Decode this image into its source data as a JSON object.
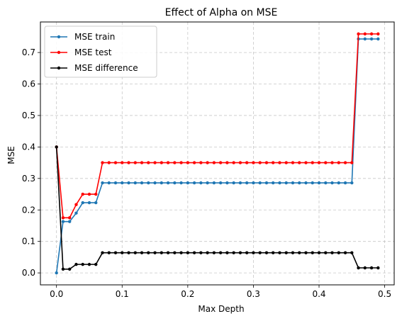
{
  "chart_data": {
    "type": "line",
    "title": "Effect of Alpha on MSE",
    "xlabel": "Max Depth",
    "ylabel": "MSE",
    "xlim": [
      -0.0245,
      0.5145
    ],
    "ylim": [
      -0.038,
      0.797
    ],
    "xticks": [
      0.0,
      0.1,
      0.2,
      0.3,
      0.4,
      0.5
    ],
    "xtick_labels": [
      "0.0",
      "0.1",
      "0.2",
      "0.3",
      "0.4",
      "0.5"
    ],
    "yticks": [
      0.0,
      0.1,
      0.2,
      0.3,
      0.4,
      0.5,
      0.6,
      0.7
    ],
    "ytick_labels": [
      "0.0",
      "0.1",
      "0.2",
      "0.3",
      "0.4",
      "0.5",
      "0.6",
      "0.7"
    ],
    "grid": true,
    "legend": "top-left",
    "x": [
      0.0,
      0.01,
      0.02,
      0.03,
      0.04,
      0.05,
      0.06,
      0.07,
      0.08,
      0.09,
      0.1,
      0.11,
      0.12,
      0.13,
      0.14,
      0.15,
      0.16,
      0.17,
      0.18,
      0.19,
      0.2,
      0.21,
      0.22,
      0.23,
      0.24,
      0.25,
      0.26,
      0.27,
      0.28,
      0.29,
      0.3,
      0.31,
      0.32,
      0.33,
      0.34,
      0.35,
      0.36,
      0.37,
      0.38,
      0.39,
      0.4,
      0.41,
      0.42,
      0.43,
      0.44,
      0.45,
      0.46,
      0.47,
      0.48,
      0.49
    ],
    "series": [
      {
        "name": "MSE train",
        "color": "#1f77b4",
        "values": [
          0.0,
          0.163,
          0.163,
          0.19,
          0.223,
          0.223,
          0.223,
          0.286,
          0.286,
          0.286,
          0.286,
          0.286,
          0.286,
          0.286,
          0.286,
          0.286,
          0.286,
          0.286,
          0.286,
          0.286,
          0.286,
          0.286,
          0.286,
          0.286,
          0.286,
          0.286,
          0.286,
          0.286,
          0.286,
          0.286,
          0.286,
          0.286,
          0.286,
          0.286,
          0.286,
          0.286,
          0.286,
          0.286,
          0.286,
          0.286,
          0.286,
          0.286,
          0.286,
          0.286,
          0.286,
          0.286,
          0.743,
          0.743,
          0.743,
          0.743
        ]
      },
      {
        "name": "MSE test",
        "color": "#ff0000",
        "values": [
          0.4,
          0.175,
          0.175,
          0.217,
          0.25,
          0.25,
          0.25,
          0.35,
          0.35,
          0.35,
          0.35,
          0.35,
          0.35,
          0.35,
          0.35,
          0.35,
          0.35,
          0.35,
          0.35,
          0.35,
          0.35,
          0.35,
          0.35,
          0.35,
          0.35,
          0.35,
          0.35,
          0.35,
          0.35,
          0.35,
          0.35,
          0.35,
          0.35,
          0.35,
          0.35,
          0.35,
          0.35,
          0.35,
          0.35,
          0.35,
          0.35,
          0.35,
          0.35,
          0.35,
          0.35,
          0.35,
          0.759,
          0.759,
          0.759,
          0.759
        ]
      },
      {
        "name": "MSE difference",
        "color": "#000000",
        "values": [
          0.4,
          0.012,
          0.012,
          0.027,
          0.027,
          0.027,
          0.027,
          0.064,
          0.064,
          0.064,
          0.064,
          0.064,
          0.064,
          0.064,
          0.064,
          0.064,
          0.064,
          0.064,
          0.064,
          0.064,
          0.064,
          0.064,
          0.064,
          0.064,
          0.064,
          0.064,
          0.064,
          0.064,
          0.064,
          0.064,
          0.064,
          0.064,
          0.064,
          0.064,
          0.064,
          0.064,
          0.064,
          0.064,
          0.064,
          0.064,
          0.064,
          0.064,
          0.064,
          0.064,
          0.064,
          0.064,
          0.016,
          0.016,
          0.016,
          0.016
        ]
      }
    ]
  }
}
